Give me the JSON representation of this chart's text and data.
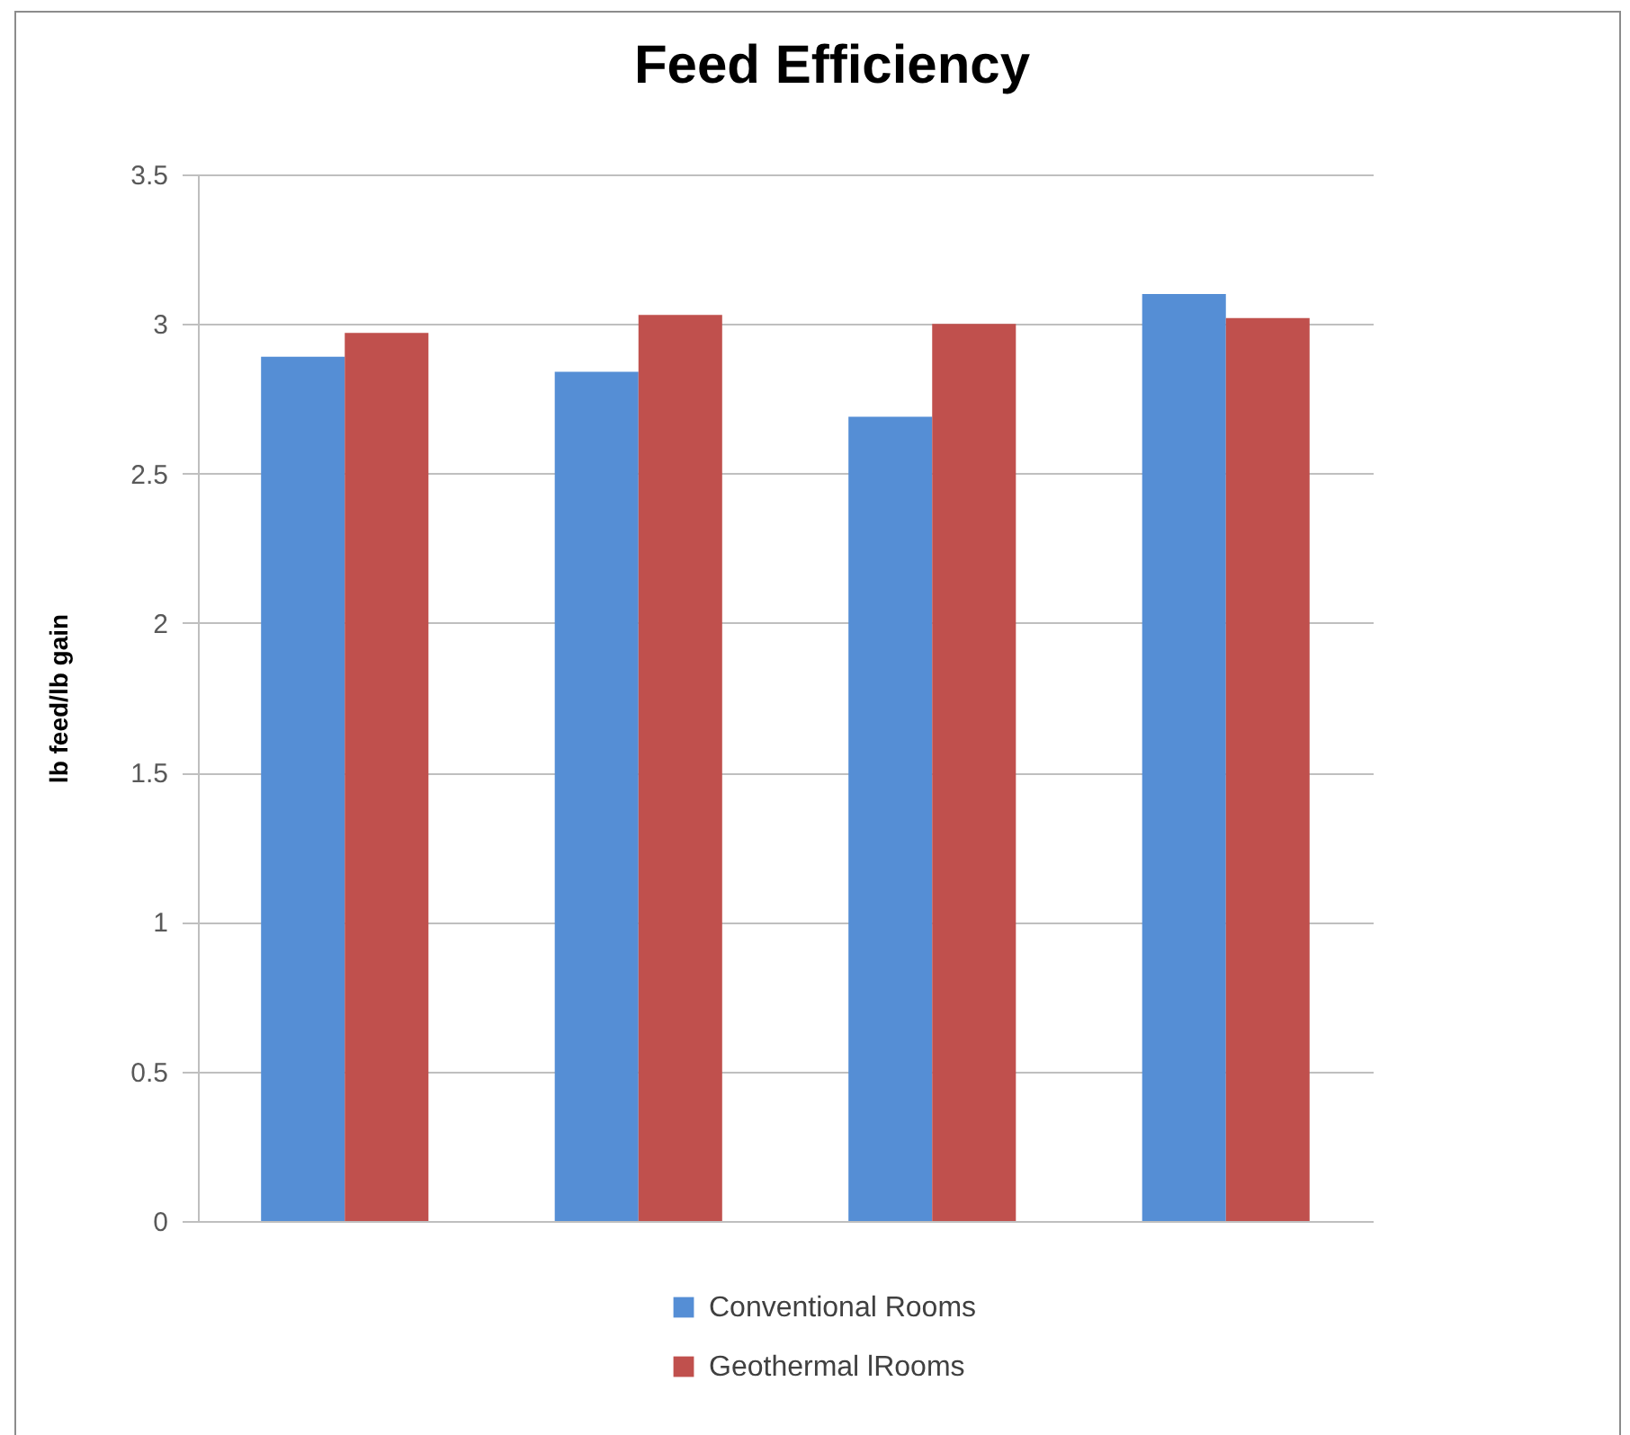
{
  "chart_data": {
    "type": "bar",
    "title": "Feed Efficiency",
    "ylabel": "lb feed/lb gain",
    "categories": [
      null,
      null,
      null,
      null
    ],
    "series": [
      {
        "name": "Conventional Rooms",
        "color": "#558ed5",
        "values": [
          2.89,
          2.84,
          2.69,
          3.1
        ]
      },
      {
        "name": "Geothermal lRooms",
        "color": "#c0504d",
        "values": [
          2.97,
          3.03,
          3.0,
          3.02
        ]
      }
    ],
    "ylim": [
      0,
      3.5
    ],
    "yticks": [
      {
        "value": 0,
        "label": "0"
      },
      0.5,
      {
        "value": 1,
        "label": "1"
      },
      1.5,
      {
        "value": 2,
        "label": "2"
      },
      2.5,
      {
        "value": 3,
        "label": "3"
      },
      3.5
    ],
    "grid": "y",
    "legend": "bottom"
  }
}
